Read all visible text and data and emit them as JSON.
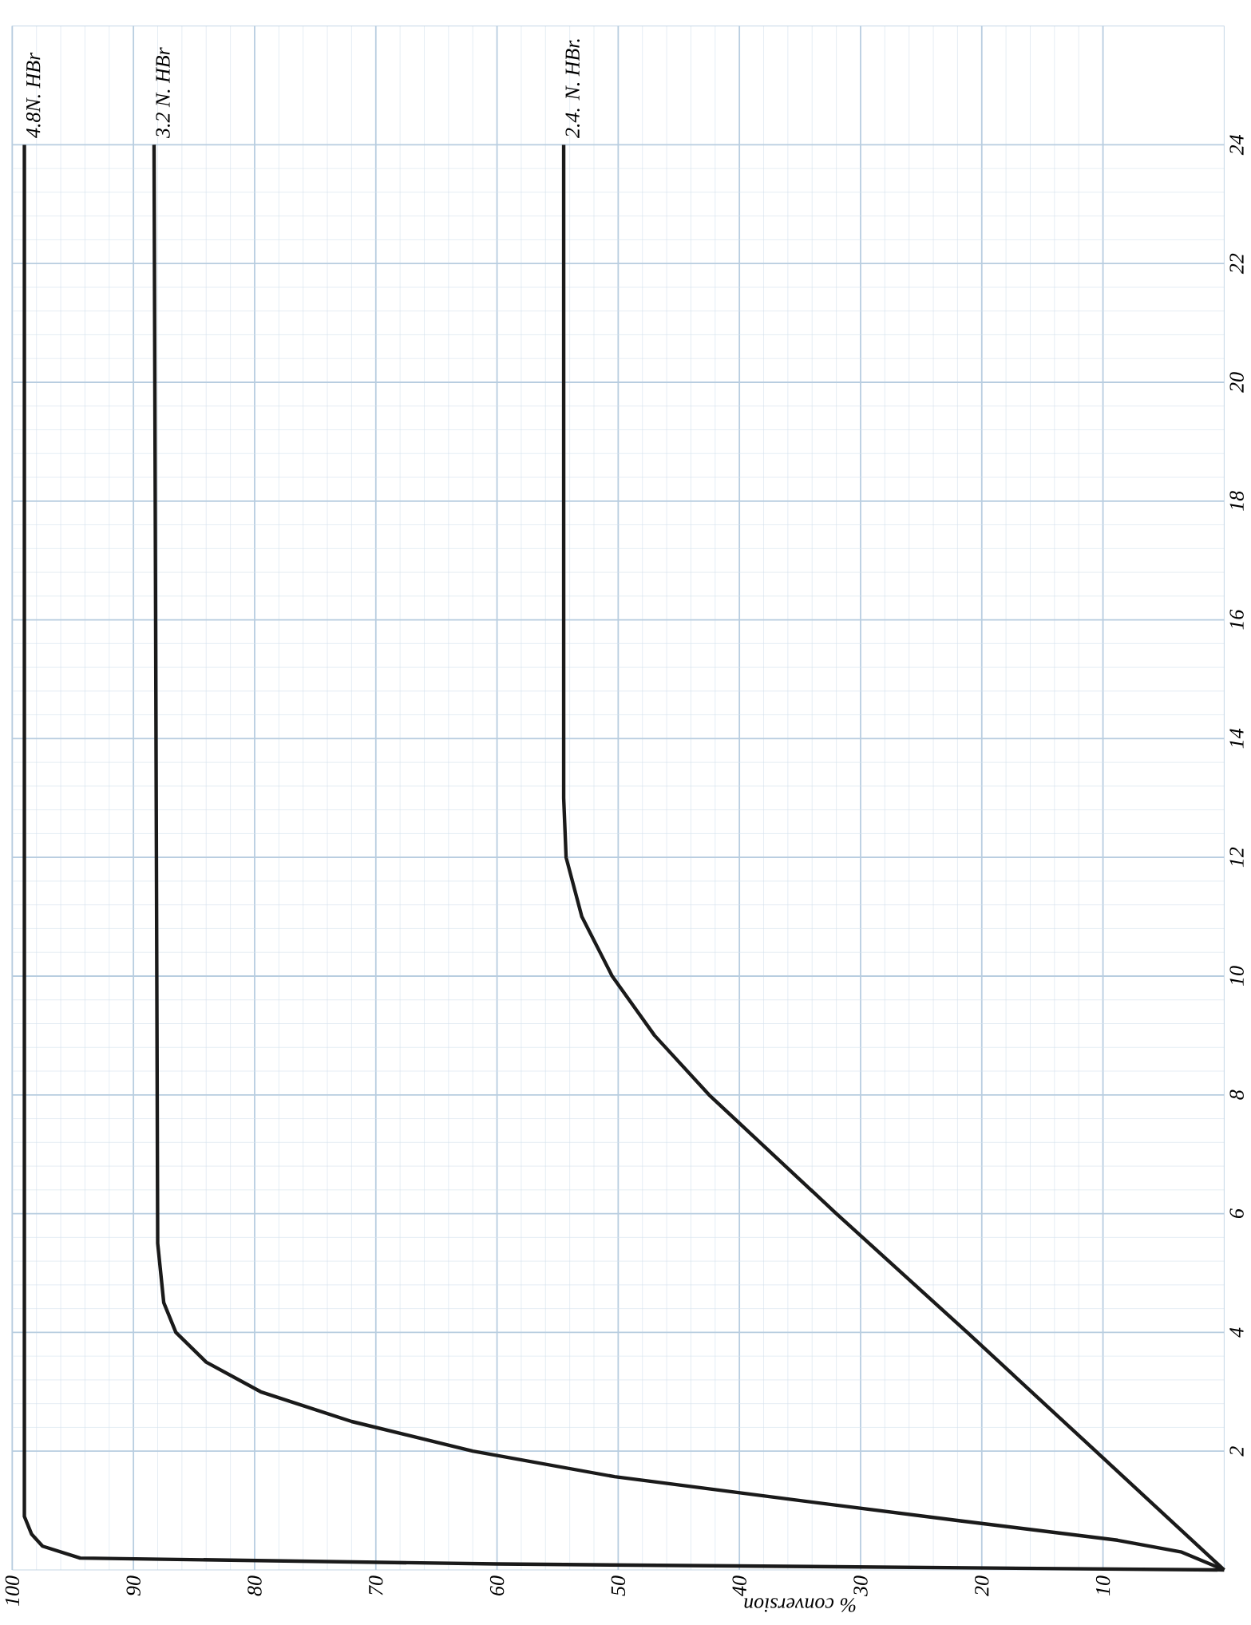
{
  "chart_data": {
    "type": "line",
    "xlabel": "% conversion",
    "xlim": [
      100,
      0
    ],
    "ylim": [
      0,
      26
    ],
    "xticks": [
      100,
      90,
      80,
      70,
      60,
      50,
      40,
      30,
      20,
      10
    ],
    "yticks": [
      2,
      4,
      6,
      8,
      10,
      12,
      14,
      16,
      18,
      20,
      22,
      24
    ],
    "grid": true,
    "series": [
      {
        "name": "4.8N. HBr",
        "color": "#1a1a1a",
        "x": [
          0,
          60,
          94.4,
          97.5,
          98.4,
          99,
          99
        ],
        "values": [
          0,
          0.1,
          0.2,
          0.4,
          0.6,
          0.9,
          24
        ]
      },
      {
        "name": "3.2 N. HBr",
        "color": "#1a1a1a",
        "x": [
          0,
          3.5,
          8.8,
          21.9,
          35.1,
          50.3,
          62,
          72,
          79.5,
          84,
          86.5,
          87.5,
          88,
          88.3
        ],
        "values": [
          0,
          0.3,
          0.5,
          0.83,
          1.17,
          1.57,
          2,
          2.5,
          3,
          3.5,
          4,
          4.5,
          5.5,
          24
        ]
      },
      {
        "name": "2.4. N. HBr.",
        "color": "#1a1a1a",
        "x": [
          0,
          10.6,
          21.2,
          32,
          42.5,
          47,
          50.5,
          53,
          54.3,
          54.5,
          54.5
        ],
        "values": [
          0,
          2,
          4,
          6,
          8,
          9,
          10,
          11,
          12,
          13,
          24
        ]
      }
    ]
  }
}
